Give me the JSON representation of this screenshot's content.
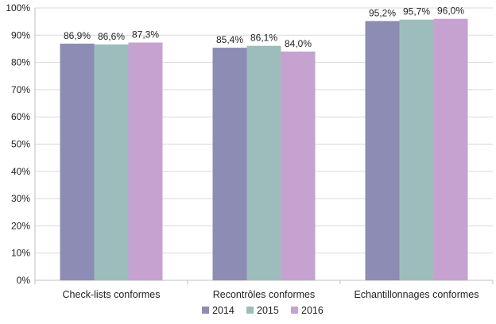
{
  "chart_data": {
    "type": "bar",
    "title": "",
    "xlabel": "",
    "ylabel": "",
    "ylim": [
      0,
      100
    ],
    "y_ticks": [
      "0%",
      "10%",
      "20%",
      "30%",
      "40%",
      "50%",
      "60%",
      "70%",
      "80%",
      "90%",
      "100%"
    ],
    "grid": true,
    "legend_position": "bottom",
    "categories": [
      "Check-lists conformes",
      "Recontrôles conformes",
      "Echantillonnages conformes"
    ],
    "series": [
      {
        "name": "2014",
        "color": "#8d8cb4",
        "values": [
          86.9,
          85.4,
          95.2
        ],
        "labels": [
          "86,9%",
          "85,4%",
          "95,2%"
        ]
      },
      {
        "name": "2015",
        "color": "#9dbdbd",
        "values": [
          86.6,
          86.1,
          95.7
        ],
        "labels": [
          "86,6%",
          "86,1%",
          "95,7%"
        ]
      },
      {
        "name": "2016",
        "color": "#c6a2d0",
        "values": [
          87.3,
          84.0,
          96.0
        ],
        "labels": [
          "87,3%",
          "84,0%",
          "96,0%"
        ]
      }
    ]
  }
}
